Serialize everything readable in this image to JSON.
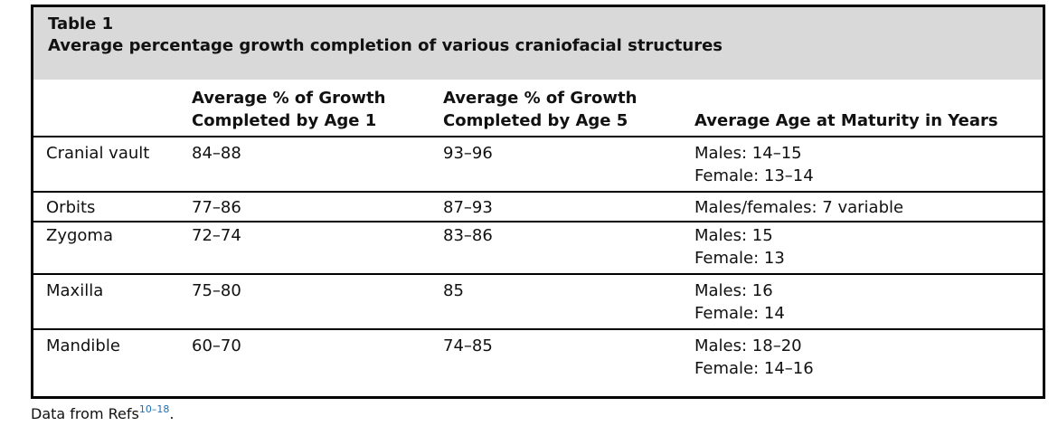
{
  "caption": {
    "label": "Table 1",
    "title": "Average percentage growth completion of various craniofacial structures"
  },
  "headers": {
    "col1": "",
    "col2_line1": "Average % of Growth",
    "col2_line2": "Completed by Age 1",
    "col3_line1": "Average % of Growth",
    "col3_line2": "Completed by Age 5",
    "col4": "Average Age at Maturity in Years"
  },
  "rows": [
    {
      "structure": "Cranial vault",
      "age1": "84–88",
      "age5": "93–96",
      "maturity_line1": "Males: 14–15",
      "maturity_line2": "Female: 13–14"
    },
    {
      "structure": "Orbits",
      "age1": "77–86",
      "age5": "87–93",
      "maturity_line1": "Males/females: 7 variable",
      "maturity_line2": ""
    },
    {
      "structure": "Zygoma",
      "age1": "72–74",
      "age5": "83–86",
      "maturity_line1": "Males: 15",
      "maturity_line2": "Female: 13"
    },
    {
      "structure": "Maxilla",
      "age1": "75–80",
      "age5": "85",
      "maturity_line1": "Males: 16",
      "maturity_line2": "Female: 14"
    },
    {
      "structure": "Mandible",
      "age1": "60–70",
      "age5": "74–85",
      "maturity_line1": "Males: 18–20",
      "maturity_line2": "Female: 14–16"
    }
  ],
  "source": {
    "text": "Data from Refs",
    "refs": "10–18",
    "end": "."
  }
}
